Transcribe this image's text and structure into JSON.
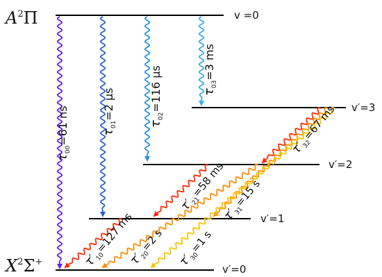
{
  "states": {
    "upper": {
      "main": "A",
      "sup": "2",
      "sym": "Π"
    },
    "lower": {
      "main": "X",
      "sup": "2",
      "sym": "Σ",
      "symsup": "+"
    }
  },
  "levels": {
    "a_v0": "v =0",
    "x_v0": "v′=0",
    "x_v1": "v′=1",
    "x_v2": "v′=2",
    "x_v3": "v′=3"
  },
  "transitions": [
    {
      "id": "t00",
      "tau": "τ",
      "sub": "00",
      "value": "=61 ns",
      "color": "#6a1ee8"
    },
    {
      "id": "t01",
      "tau": "τ",
      "sub": "01",
      "value": "=2 μs",
      "color": "#2a5fd6"
    },
    {
      "id": "t02",
      "tau": "τ",
      "sub": "02",
      "value": "=116 μs",
      "color": "#2f8fd8"
    },
    {
      "id": "t03",
      "tau": "τ",
      "sub": "03",
      "value": "=3 ms",
      "color": "#39aee0"
    },
    {
      "id": "t32",
      "tau": "τ′",
      "sub": "32",
      "value": "=67 ms",
      "color": "#ff2a00"
    },
    {
      "id": "t21",
      "tau": "τ′",
      "sub": "21",
      "value": "=58 ms",
      "color": "#ff2a00"
    },
    {
      "id": "t31",
      "tau": "τ′",
      "sub": "31",
      "value": "=15 s",
      "color": "#ff8c00"
    },
    {
      "id": "t10",
      "tau": "τ′",
      "sub": "10",
      "value": "=127 ms",
      "color": "#ff2a00"
    },
    {
      "id": "t20",
      "tau": "τ′",
      "sub": "20",
      "value": "=2 s",
      "color": "#ff8c00"
    },
    {
      "id": "t30",
      "tau": "τ′",
      "sub": "30",
      "value": "=1 s",
      "color": "#f5c400"
    }
  ]
}
